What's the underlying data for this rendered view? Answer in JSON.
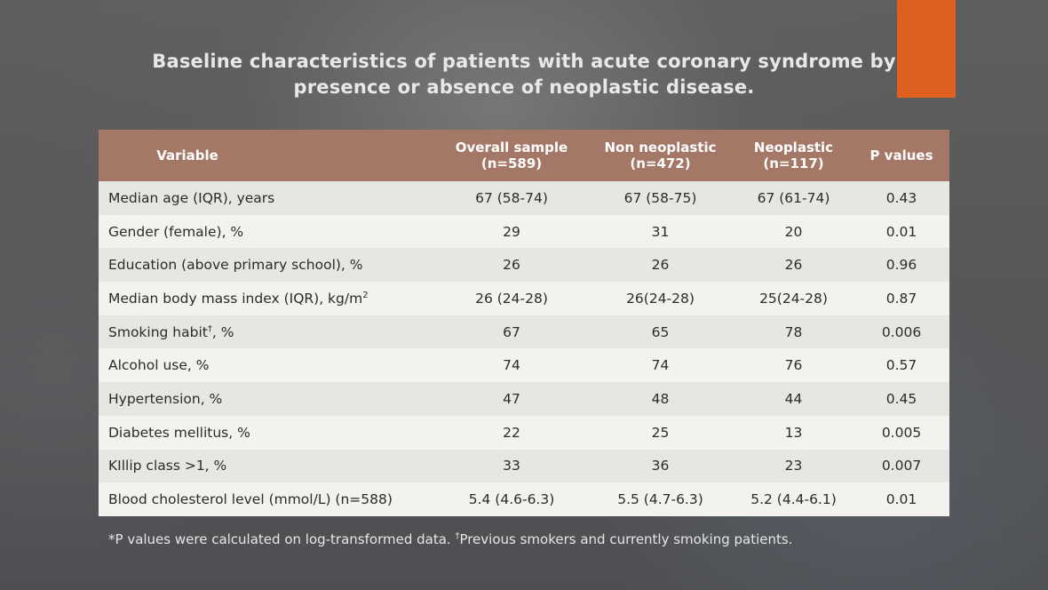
{
  "slide": {
    "title_line1": "Baseline characteristics of patients with acute coronary syndrome by",
    "title_line2": "presence or absence of neoplastic disease.",
    "accent_color": "#e0611f",
    "header_color": "#a57766"
  },
  "table": {
    "headers": [
      {
        "line1": "Variable",
        "line2": ""
      },
      {
        "line1": "Overall sample",
        "line2": "(n=589)"
      },
      {
        "line1": "Non neoplastic",
        "line2": "(n=472)"
      },
      {
        "line1": "Neoplastic",
        "line2": "(n=117)"
      },
      {
        "line1": "P values",
        "line2": ""
      }
    ],
    "rows": [
      {
        "variable": "Median age (IQR), years",
        "sup": "",
        "suffix": "",
        "overall": "67 (58-74)",
        "non_neoplastic": "67 (58-75)",
        "neoplastic": "67 (61-74)",
        "p": "0.43"
      },
      {
        "variable": "Gender (female), %",
        "sup": "",
        "suffix": "",
        "overall": "29",
        "non_neoplastic": "31",
        "neoplastic": "20",
        "p": "0.01"
      },
      {
        "variable": "Education (above primary school), %",
        "sup": "",
        "suffix": "",
        "overall": "26",
        "non_neoplastic": "26",
        "neoplastic": "26",
        "p": "0.96"
      },
      {
        "variable": "Median body mass index (IQR), kg/m",
        "sup": "2",
        "suffix": "",
        "overall": "26 (24-28)",
        "non_neoplastic": "26(24-28)",
        "neoplastic": "25(24-28)",
        "p": "0.87"
      },
      {
        "variable": "Smoking habit",
        "sup": "†",
        "suffix": ", %",
        "overall": "67",
        "non_neoplastic": "65",
        "neoplastic": "78",
        "p": "0.006"
      },
      {
        "variable": "Alcohol use, %",
        "sup": "",
        "suffix": "",
        "overall": "74",
        "non_neoplastic": "74",
        "neoplastic": "76",
        "p": "0.57"
      },
      {
        "variable": "Hypertension, %",
        "sup": "",
        "suffix": "",
        "overall": "47",
        "non_neoplastic": "48",
        "neoplastic": "44",
        "p": "0.45"
      },
      {
        "variable": "Diabetes mellitus, %",
        "sup": "",
        "suffix": "",
        "overall": "22",
        "non_neoplastic": "25",
        "neoplastic": "13",
        "p": "0.005"
      },
      {
        "variable": "KIllip class >1, %",
        "sup": "",
        "suffix": "",
        "overall": "33",
        "non_neoplastic": "36",
        "neoplastic": "23",
        "p": "0.007"
      },
      {
        "variable": "Blood cholesterol level (mmol/L) (n=588)",
        "sup": "",
        "suffix": "",
        "overall": "5.4 (4.6-6.3)",
        "non_neoplastic": "5.5 (4.7-6.3)",
        "neoplastic": "5.2 (4.4-6.1)",
        "p": "0.01"
      }
    ]
  },
  "footnote": {
    "part1": "*P values were calculated on log-transformed data. ",
    "dagger": "†",
    "part2": "Previous smokers and currently smoking patients."
  }
}
